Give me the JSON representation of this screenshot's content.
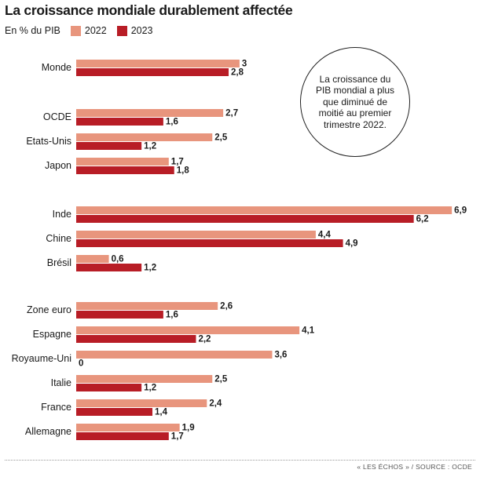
{
  "title": "La croissance mondiale durablement affectée",
  "colors": {
    "2022": "#e8957d",
    "2023": "#b81d26"
  },
  "chart_data": {
    "type": "bar",
    "orientation": "horizontal",
    "unit_label": "En % du PIB",
    "series": [
      {
        "name": "2022",
        "color": "#e8957d"
      },
      {
        "name": "2023",
        "color": "#b81d26"
      }
    ],
    "groups": [
      {
        "items": [
          {
            "label": "Monde",
            "v2022": 3,
            "v2023": 2.8,
            "t2022": "3",
            "t2023": "2,8"
          }
        ]
      },
      {
        "items": [
          {
            "label": "OCDE",
            "v2022": 2.7,
            "v2023": 1.6,
            "t2022": "2,7",
            "t2023": "1,6"
          },
          {
            "label": "Etats-Unis",
            "v2022": 2.5,
            "v2023": 1.2,
            "t2022": "2,5",
            "t2023": "1,2"
          },
          {
            "label": "Japon",
            "v2022": 1.7,
            "v2023": 1.8,
            "t2022": "1,7",
            "t2023": "1,8"
          }
        ]
      },
      {
        "items": [
          {
            "label": "Inde",
            "v2022": 6.9,
            "v2023": 6.2,
            "t2022": "6,9",
            "t2023": "6,2"
          },
          {
            "label": "Chine",
            "v2022": 4.4,
            "v2023": 4.9,
            "t2022": "4,4",
            "t2023": "4,9"
          },
          {
            "label": "Brésil",
            "v2022": 0.6,
            "v2023": 1.2,
            "t2022": "0,6",
            "t2023": "1,2"
          }
        ]
      },
      {
        "items": [
          {
            "label": "Zone euro",
            "v2022": 2.6,
            "v2023": 1.6,
            "t2022": "2,6",
            "t2023": "1,6"
          },
          {
            "label": "Espagne",
            "v2022": 4.1,
            "v2023": 2.2,
            "t2022": "4,1",
            "t2023": "2,2"
          },
          {
            "label": "Royaume-Uni",
            "v2022": 3.6,
            "v2023": 0,
            "t2022": "3,6",
            "t2023": "0"
          },
          {
            "label": "Italie",
            "v2022": 2.5,
            "v2023": 1.2,
            "t2022": "2,5",
            "t2023": "1,2"
          },
          {
            "label": "France",
            "v2022": 2.4,
            "v2023": 1.4,
            "t2022": "2,4",
            "t2023": "1,4"
          },
          {
            "label": "Allemagne",
            "v2022": 1.9,
            "v2023": 1.7,
            "t2022": "1,9",
            "t2023": "1,7"
          }
        ]
      }
    ]
  },
  "callout": "La croissance du PIB mondial a plus que diminué de moitié au premier trimestre 2022.",
  "source": "« LES ÉCHOS » / SOURCE : OCDE"
}
